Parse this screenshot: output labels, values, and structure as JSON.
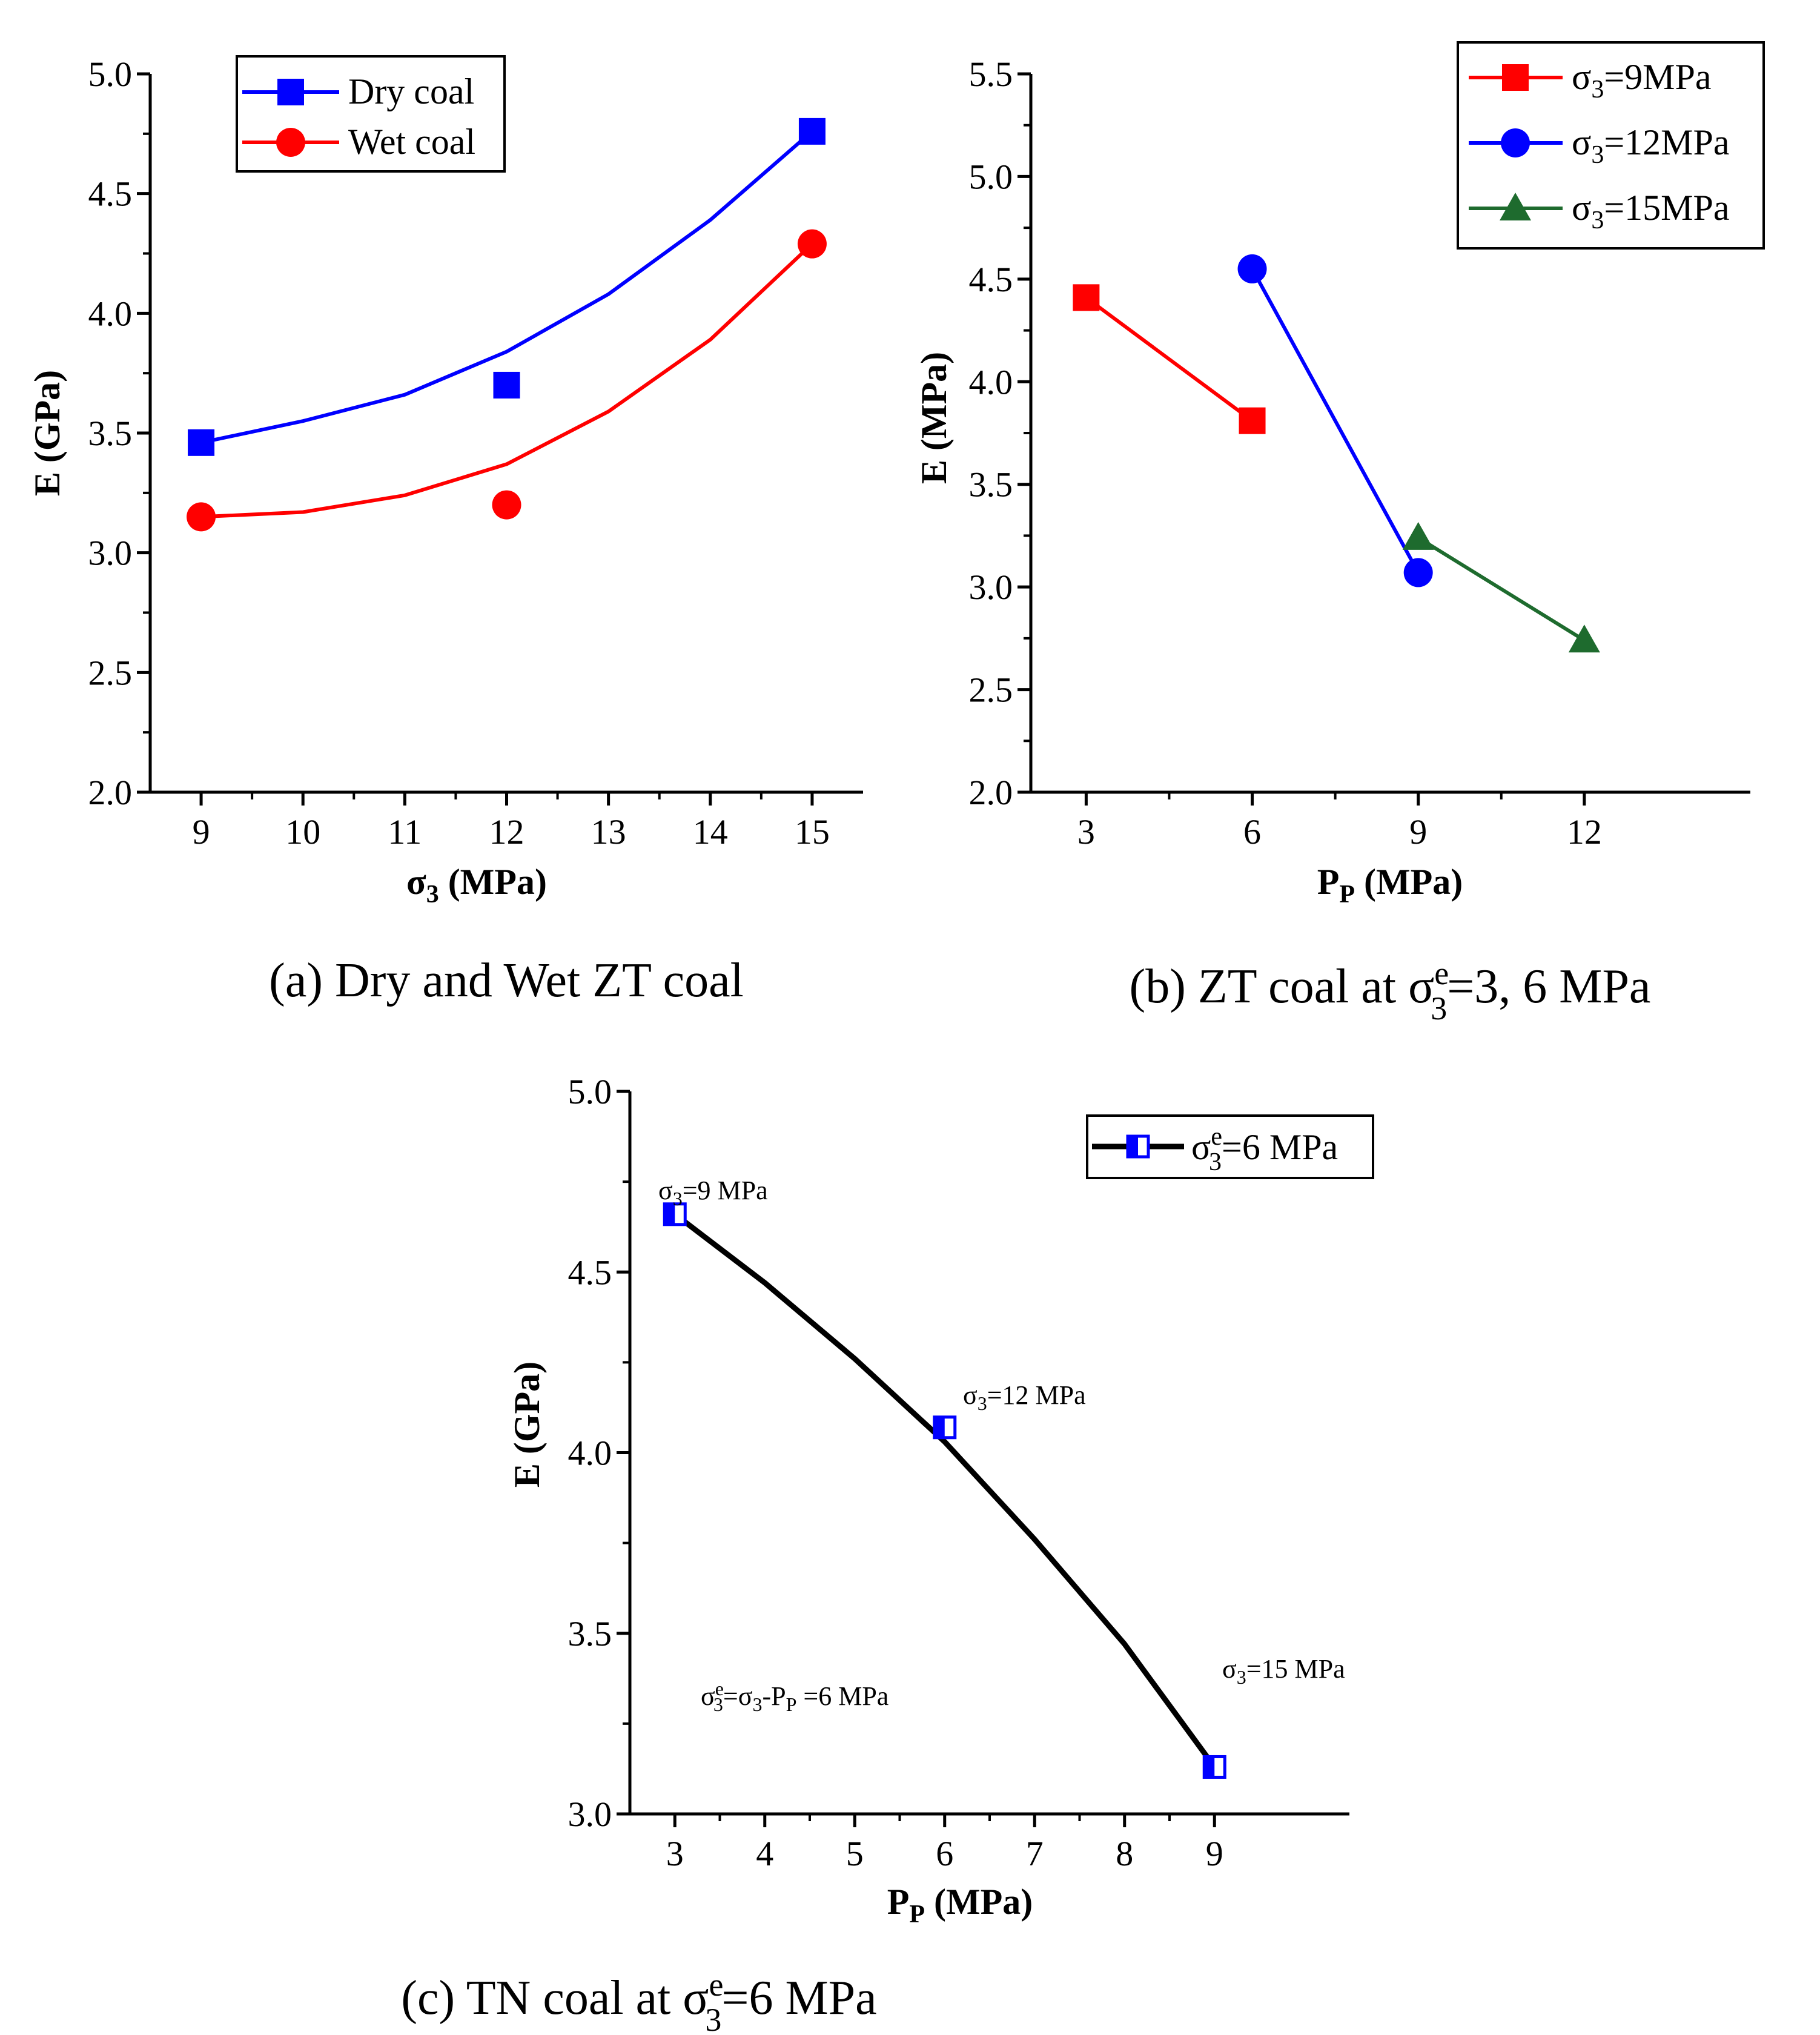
{
  "colors": {
    "dry": "#0000ff",
    "wet": "#ff0000",
    "s9": "#ff0000",
    "s12": "#0000ff",
    "s15": "#1e6b2e",
    "tn": "#000000",
    "tn_marker": "#0000ff"
  },
  "chart_data": [
    {
      "id": "a",
      "type": "scatter",
      "caption": "(a) Dry and Wet ZT coal",
      "xlabel": "σ3 (MPa)",
      "xlabel_main": "σ",
      "xlabel_sub": "3",
      "xlabel_rest": " (MPa)",
      "ylabel": "E (GPa)",
      "xlim": [
        8.5,
        15.5
      ],
      "ylim": [
        2.0,
        5.0
      ],
      "xticks": [
        "9",
        "10",
        "11",
        "12",
        "13",
        "14",
        "15"
      ],
      "yticks": [
        "2.0",
        "2.5",
        "3.0",
        "3.5",
        "4.0",
        "4.5",
        "5.0"
      ],
      "legend_position": "top-left",
      "series": [
        {
          "name": "Dry coal",
          "marker": "square",
          "x": [
            9,
            12,
            15
          ],
          "y": [
            3.46,
            3.7,
            4.76
          ],
          "fit": {
            "x": [
              9,
              10,
              11,
              12,
              13,
              14,
              15
            ],
            "y": [
              3.46,
              3.55,
              3.66,
              3.84,
              4.08,
              4.39,
              4.76
            ]
          }
        },
        {
          "name": "Wet coal",
          "marker": "circle",
          "x": [
            9,
            12,
            15
          ],
          "y": [
            3.15,
            3.2,
            4.29
          ],
          "fit": {
            "x": [
              9,
              10,
              11,
              12,
              13,
              14,
              15
            ],
            "y": [
              3.15,
              3.17,
              3.24,
              3.37,
              3.59,
              3.89,
              4.29
            ]
          }
        }
      ]
    },
    {
      "id": "b",
      "type": "line",
      "caption": "(b) ZT coal at σ3e=3, 6 MPa",
      "caption_pre": "(b) ZT coal at σ",
      "caption_sup": "e",
      "caption_sub": "3",
      "caption_post": "=3, 6 MPa",
      "xlabel": "PP (MPa)",
      "xlabel_main": "P",
      "xlabel_sub": "P",
      "xlabel_rest": " (MPa)",
      "ylabel": "E (MPa)",
      "xlim": [
        2,
        15
      ],
      "ylim": [
        2.0,
        5.5
      ],
      "xticks": [
        "3",
        "6",
        "9",
        "12"
      ],
      "yticks": [
        "2.0",
        "2.5",
        "3.0",
        "3.5",
        "4.0",
        "4.5",
        "5.0",
        "5.5"
      ],
      "legend_position": "top-right",
      "series": [
        {
          "name": "σ3=9MPa",
          "label_main": "σ",
          "label_sub": "3",
          "label_rest": "=9MPa",
          "marker": "square",
          "x": [
            3,
            6
          ],
          "y": [
            4.41,
            3.81
          ]
        },
        {
          "name": "σ3=12MPa",
          "label_main": "σ",
          "label_sub": "3",
          "label_rest": "=12MPa",
          "marker": "circle",
          "x": [
            6,
            9
          ],
          "y": [
            4.55,
            3.07
          ]
        },
        {
          "name": "σ3=15MPa",
          "label_main": "σ",
          "label_sub": "3",
          "label_rest": "=15MPa",
          "marker": "triangle",
          "x": [
            9,
            12
          ],
          "y": [
            3.24,
            2.74
          ]
        }
      ]
    },
    {
      "id": "c",
      "type": "line",
      "caption": "(c) TN coal at σ3e=6 MPa",
      "caption_pre": "(c) TN coal at σ",
      "caption_sup": "e",
      "caption_sub": "3",
      "caption_post": "=6 MPa",
      "xlabel": "PP (MPa)",
      "xlabel_main": "P",
      "xlabel_sub": "P",
      "xlabel_rest": " (MPa)",
      "ylabel": "E (GPa)",
      "xlim": [
        2.5,
        10.5
      ],
      "ylim": [
        3.0,
        5.0
      ],
      "xticks": [
        "3",
        "4",
        "5",
        "6",
        "7",
        "8",
        "9"
      ],
      "yticks": [
        "3.0",
        "3.5",
        "4.0",
        "4.5",
        "5.0"
      ],
      "legend_position": "top-right",
      "series": [
        {
          "name": "σe3=6 MPa",
          "label_main": "σ",
          "label_sup": "e",
          "label_sub": "3",
          "label_rest": "=6 MPa",
          "marker": "half-square",
          "x": [
            3,
            6,
            9
          ],
          "y": [
            4.66,
            4.07,
            3.13
          ],
          "fit": {
            "x": [
              3,
              4,
              5,
              6,
              7,
              8,
              9
            ],
            "y": [
              4.66,
              4.47,
              4.26,
              4.03,
              3.76,
              3.47,
              3.13
            ]
          }
        }
      ],
      "annotations": [
        {
          "text": "σ3=9 MPa",
          "main": "σ",
          "sub": "3",
          "rest": "=9 MPa"
        },
        {
          "text": "σ3=12 MPa",
          "main": "σ",
          "sub": "3",
          "rest": "=12 MPa"
        },
        {
          "text": "σ3=15 MPa",
          "main": "σ",
          "sub": "3",
          "rest": "=15 MPa"
        },
        {
          "text": "σe3=σ3-PP=6 MPa"
        }
      ],
      "formula": {
        "p1": "σ",
        "sup1": "e",
        "sub1": "3",
        "p2": "=σ",
        "sub2": "3",
        "p3": "-P",
        "sub3": "P",
        "p4": " =6 MPa"
      }
    }
  ]
}
